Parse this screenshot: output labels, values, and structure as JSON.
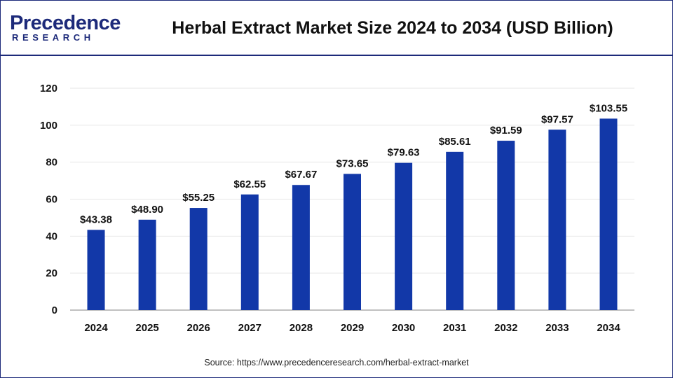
{
  "header": {
    "logo_top": "Precedence",
    "logo_bottom": "RESEARCH",
    "title": "Herbal Extract Market Size 2024 to 2034 (USD Billion)"
  },
  "footer": {
    "source": "Source: https://www.precedenceresearch.com/herbal-extract-market"
  },
  "colors": {
    "bar": "#1238a8",
    "brand": "#1d2a7a",
    "grid": "#e6e6e6"
  },
  "chart_data": {
    "type": "bar",
    "categories": [
      "2024",
      "2025",
      "2026",
      "2027",
      "2028",
      "2029",
      "2030",
      "2031",
      "2032",
      "2033",
      "2034"
    ],
    "values": [
      43.38,
      48.9,
      55.25,
      62.55,
      67.67,
      73.65,
      79.63,
      85.61,
      91.59,
      97.57,
      103.55
    ],
    "data_labels": [
      "$43.38",
      "$48.90",
      "$55.25",
      "$62.55",
      "$67.67",
      "$73.65",
      "$79.63",
      "$85.61",
      "$91.59",
      "$97.57",
      "$103.55"
    ],
    "yticks": [
      "0",
      "20",
      "40",
      "60",
      "80",
      "100",
      "120"
    ],
    "ylim": [
      0,
      120
    ],
    "grid": true,
    "legend": "none"
  }
}
